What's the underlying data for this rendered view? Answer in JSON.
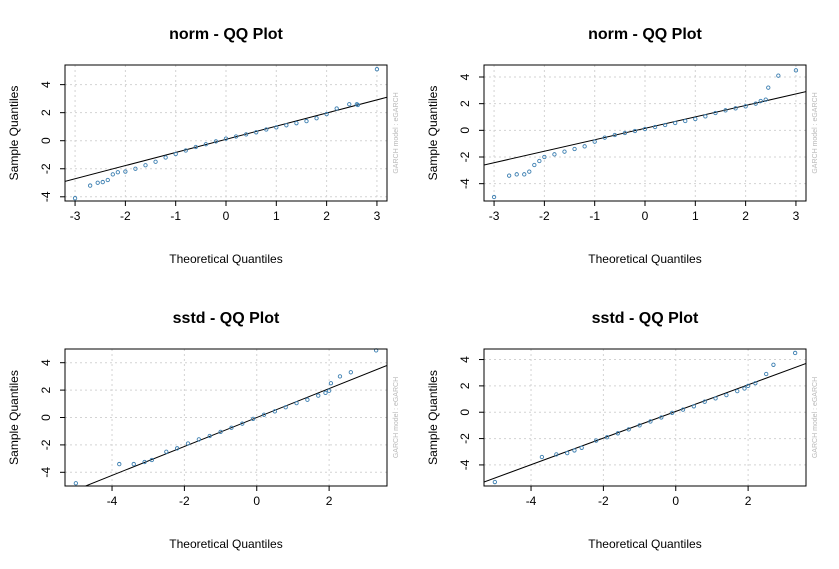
{
  "chart_data": [
    {
      "type": "scatter",
      "title": "norm - QQ Plot",
      "xlabel": "Theoretical Quantiles",
      "ylabel": "Sample Quantiles",
      "side_note": "GARCH model : eGARCH",
      "xlim": [
        -3.2,
        3.2
      ],
      "ylim": [
        -4.3,
        5.4
      ],
      "xticks": [
        -3,
        -2,
        -1,
        0,
        1,
        2,
        3
      ],
      "yticks": [
        -4,
        -2,
        0,
        2,
        4
      ],
      "grid": true,
      "reference_line": {
        "x": [
          -3.2,
          3.2
        ],
        "y": [
          -2.9,
          3.1
        ]
      },
      "points": [
        {
          "x": -3.0,
          "y": -4.1
        },
        {
          "x": -2.7,
          "y": -3.2
        },
        {
          "x": -2.55,
          "y": -3.0
        },
        {
          "x": -2.45,
          "y": -2.95
        },
        {
          "x": -2.35,
          "y": -2.8
        },
        {
          "x": -2.25,
          "y": -2.4
        },
        {
          "x": -2.15,
          "y": -2.25
        },
        {
          "x": -2.0,
          "y": -2.2
        },
        {
          "x": -1.8,
          "y": -2.0
        },
        {
          "x": -1.6,
          "y": -1.75
        },
        {
          "x": -1.4,
          "y": -1.5
        },
        {
          "x": -1.2,
          "y": -1.2
        },
        {
          "x": -1.0,
          "y": -0.95
        },
        {
          "x": -0.8,
          "y": -0.7
        },
        {
          "x": -0.6,
          "y": -0.45
        },
        {
          "x": -0.4,
          "y": -0.25
        },
        {
          "x": -0.2,
          "y": -0.05
        },
        {
          "x": 0.0,
          "y": 0.15
        },
        {
          "x": 0.2,
          "y": 0.3
        },
        {
          "x": 0.4,
          "y": 0.45
        },
        {
          "x": 0.6,
          "y": 0.6
        },
        {
          "x": 0.8,
          "y": 0.8
        },
        {
          "x": 1.0,
          "y": 0.95
        },
        {
          "x": 1.2,
          "y": 1.1
        },
        {
          "x": 1.4,
          "y": 1.25
        },
        {
          "x": 1.6,
          "y": 1.4
        },
        {
          "x": 1.8,
          "y": 1.6
        },
        {
          "x": 2.0,
          "y": 1.9
        },
        {
          "x": 2.2,
          "y": 2.3
        },
        {
          "x": 2.45,
          "y": 2.6
        },
        {
          "x": 2.6,
          "y": 2.6
        },
        {
          "x": 2.62,
          "y": 2.55
        },
        {
          "x": 3.0,
          "y": 5.1
        }
      ]
    },
    {
      "type": "scatter",
      "title": "norm - QQ Plot",
      "xlabel": "Theoretical Quantiles",
      "ylabel": "Sample Quantiles",
      "side_note": "GARCH model : eGARCH",
      "xlim": [
        -3.2,
        3.2
      ],
      "ylim": [
        -5.3,
        4.9
      ],
      "xticks": [
        -3,
        -2,
        -1,
        0,
        1,
        2,
        3
      ],
      "yticks": [
        -4,
        -2,
        0,
        2,
        4
      ],
      "grid": true,
      "reference_line": {
        "x": [
          -3.2,
          3.2
        ],
        "y": [
          -2.6,
          2.9
        ]
      },
      "points": [
        {
          "x": -3.0,
          "y": -5.0
        },
        {
          "x": -2.7,
          "y": -3.4
        },
        {
          "x": -2.55,
          "y": -3.3
        },
        {
          "x": -2.4,
          "y": -3.3
        },
        {
          "x": -2.3,
          "y": -3.1
        },
        {
          "x": -2.2,
          "y": -2.6
        },
        {
          "x": -2.1,
          "y": -2.3
        },
        {
          "x": -2.0,
          "y": -2.0
        },
        {
          "x": -1.8,
          "y": -1.8
        },
        {
          "x": -1.6,
          "y": -1.6
        },
        {
          "x": -1.4,
          "y": -1.4
        },
        {
          "x": -1.2,
          "y": -1.2
        },
        {
          "x": -1.0,
          "y": -0.85
        },
        {
          "x": -0.8,
          "y": -0.55
        },
        {
          "x": -0.6,
          "y": -0.35
        },
        {
          "x": -0.4,
          "y": -0.2
        },
        {
          "x": -0.2,
          "y": -0.05
        },
        {
          "x": 0.0,
          "y": 0.1
        },
        {
          "x": 0.2,
          "y": 0.25
        },
        {
          "x": 0.4,
          "y": 0.4
        },
        {
          "x": 0.6,
          "y": 0.55
        },
        {
          "x": 0.8,
          "y": 0.7
        },
        {
          "x": 1.0,
          "y": 0.85
        },
        {
          "x": 1.2,
          "y": 1.05
        },
        {
          "x": 1.4,
          "y": 1.3
        },
        {
          "x": 1.6,
          "y": 1.5
        },
        {
          "x": 1.8,
          "y": 1.65
        },
        {
          "x": 2.0,
          "y": 1.8
        },
        {
          "x": 2.2,
          "y": 2.0
        },
        {
          "x": 2.3,
          "y": 2.2
        },
        {
          "x": 2.4,
          "y": 2.3
        },
        {
          "x": 2.45,
          "y": 3.2
        },
        {
          "x": 2.65,
          "y": 4.1
        },
        {
          "x": 3.0,
          "y": 4.5
        }
      ]
    },
    {
      "type": "scatter",
      "title": "sstd - QQ Plot",
      "xlabel": "Theoretical Quantiles",
      "ylabel": "Sample Quantiles",
      "side_note": "GARCH model : eGARCH",
      "xlim": [
        -5.3,
        3.6
      ],
      "ylim": [
        -5.0,
        5.0
      ],
      "xticks": [
        -4,
        -2,
        0,
        2
      ],
      "yticks": [
        -4,
        -2,
        0,
        2,
        4
      ],
      "grid": true,
      "reference_line": {
        "x": [
          -5.3,
          3.6
        ],
        "y": [
          -5.6,
          3.8
        ]
      },
      "points": [
        {
          "x": -5.0,
          "y": -4.8
        },
        {
          "x": -3.8,
          "y": -3.4
        },
        {
          "x": -3.4,
          "y": -3.4
        },
        {
          "x": -3.1,
          "y": -3.25
        },
        {
          "x": -2.9,
          "y": -3.1
        },
        {
          "x": -2.5,
          "y": -2.5
        },
        {
          "x": -2.2,
          "y": -2.25
        },
        {
          "x": -1.9,
          "y": -1.9
        },
        {
          "x": -1.6,
          "y": -1.6
        },
        {
          "x": -1.3,
          "y": -1.35
        },
        {
          "x": -1.0,
          "y": -1.05
        },
        {
          "x": -0.7,
          "y": -0.75
        },
        {
          "x": -0.4,
          "y": -0.45
        },
        {
          "x": -0.1,
          "y": -0.1
        },
        {
          "x": 0.2,
          "y": 0.2
        },
        {
          "x": 0.5,
          "y": 0.45
        },
        {
          "x": 0.8,
          "y": 0.75
        },
        {
          "x": 1.1,
          "y": 1.05
        },
        {
          "x": 1.4,
          "y": 1.3
        },
        {
          "x": 1.7,
          "y": 1.6
        },
        {
          "x": 1.9,
          "y": 1.8
        },
        {
          "x": 2.0,
          "y": 1.95
        },
        {
          "x": 2.05,
          "y": 2.5
        },
        {
          "x": 2.3,
          "y": 3.0
        },
        {
          "x": 2.6,
          "y": 3.3
        },
        {
          "x": 3.3,
          "y": 4.9
        }
      ]
    },
    {
      "type": "scatter",
      "title": "sstd - QQ Plot",
      "xlabel": "Theoretical Quantiles",
      "ylabel": "Sample Quantiles",
      "side_note": "GARCH model : eGARCH",
      "xlim": [
        -5.3,
        3.6
      ],
      "ylim": [
        -5.6,
        4.8
      ],
      "xticks": [
        -4,
        -2,
        0,
        2
      ],
      "yticks": [
        -4,
        -2,
        0,
        2,
        4
      ],
      "grid": true,
      "reference_line": {
        "x": [
          -5.3,
          3.6
        ],
        "y": [
          -5.3,
          3.7
        ]
      },
      "points": [
        {
          "x": -5.0,
          "y": -5.3
        },
        {
          "x": -3.7,
          "y": -3.4
        },
        {
          "x": -3.3,
          "y": -3.2
        },
        {
          "x": -3.0,
          "y": -3.1
        },
        {
          "x": -2.8,
          "y": -2.9
        },
        {
          "x": -2.6,
          "y": -2.7
        },
        {
          "x": -2.2,
          "y": -2.15
        },
        {
          "x": -1.9,
          "y": -1.9
        },
        {
          "x": -1.6,
          "y": -1.6
        },
        {
          "x": -1.3,
          "y": -1.3
        },
        {
          "x": -1.0,
          "y": -1.0
        },
        {
          "x": -0.7,
          "y": -0.7
        },
        {
          "x": -0.4,
          "y": -0.4
        },
        {
          "x": -0.1,
          "y": -0.05
        },
        {
          "x": 0.2,
          "y": 0.2
        },
        {
          "x": 0.5,
          "y": 0.45
        },
        {
          "x": 0.8,
          "y": 0.8
        },
        {
          "x": 1.1,
          "y": 1.05
        },
        {
          "x": 1.4,
          "y": 1.3
        },
        {
          "x": 1.7,
          "y": 1.6
        },
        {
          "x": 1.9,
          "y": 1.8
        },
        {
          "x": 2.0,
          "y": 2.0
        },
        {
          "x": 2.2,
          "y": 2.2
        },
        {
          "x": 2.5,
          "y": 2.9
        },
        {
          "x": 2.7,
          "y": 3.6
        },
        {
          "x": 3.3,
          "y": 4.5
        }
      ]
    }
  ],
  "colors": {
    "points": "#3c7fb1",
    "line": "#000000",
    "grid": "#d3d3d3",
    "frame": "#000000",
    "side_note": "#b8b8b8"
  }
}
